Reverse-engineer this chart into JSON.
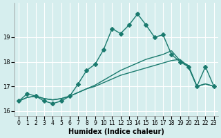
{
  "xlabel": "Humidex (Indice chaleur)",
  "ylabel": "",
  "bg_color": "#d6eeee",
  "grid_color": "#ffffff",
  "line_color": "#1a7a6e",
  "xlim": [
    -0.5,
    23.5
  ],
  "ylim": [
    15.8,
    20.4
  ],
  "yticks": [
    16,
    17,
    18,
    19
  ],
  "xticks": [
    0,
    1,
    2,
    3,
    4,
    5,
    6,
    7,
    8,
    9,
    10,
    11,
    12,
    13,
    14,
    15,
    16,
    17,
    18,
    19,
    20,
    21,
    22,
    23
  ],
  "series": [
    {
      "x": [
        0,
        1,
        2,
        3,
        4,
        5,
        6,
        7,
        8,
        9,
        10,
        11,
        12,
        13,
        14,
        15,
        16,
        17,
        18,
        19,
        20,
        21,
        22,
        23
      ],
      "y": [
        16.4,
        16.7,
        16.6,
        16.4,
        16.3,
        16.4,
        16.6,
        17.1,
        17.65,
        17.9,
        18.5,
        19.35,
        19.15,
        19.5,
        19.95,
        19.5,
        19.0,
        19.1,
        18.3,
        18.0,
        17.8,
        17.0,
        17.8,
        17.0
      ],
      "marker": "D",
      "markersize": 3
    },
    {
      "x": [
        0,
        1,
        2,
        3,
        4,
        5,
        6,
        7,
        8,
        9,
        10,
        11,
        12,
        13,
        14,
        15,
        16,
        17,
        18,
        19,
        20,
        21,
        22,
        23
      ],
      "y": [
        16.4,
        16.55,
        16.6,
        16.5,
        16.45,
        16.5,
        16.6,
        16.75,
        16.9,
        17.0,
        17.15,
        17.3,
        17.45,
        17.55,
        17.65,
        17.75,
        17.85,
        17.95,
        18.05,
        18.1,
        17.8,
        17.0,
        17.1,
        17.0
      ],
      "marker": null,
      "markersize": 0
    },
    {
      "x": [
        0,
        1,
        2,
        3,
        4,
        5,
        6,
        7,
        8,
        9,
        10,
        11,
        12,
        13,
        14,
        15,
        16,
        17,
        18,
        19,
        20,
        21,
        22,
        23
      ],
      "y": [
        16.4,
        16.55,
        16.6,
        16.5,
        16.45,
        16.5,
        16.6,
        16.75,
        16.9,
        17.05,
        17.25,
        17.45,
        17.65,
        17.8,
        17.95,
        18.1,
        18.2,
        18.3,
        18.45,
        18.05,
        17.85,
        17.0,
        17.1,
        17.0
      ],
      "marker": null,
      "markersize": 0
    }
  ]
}
